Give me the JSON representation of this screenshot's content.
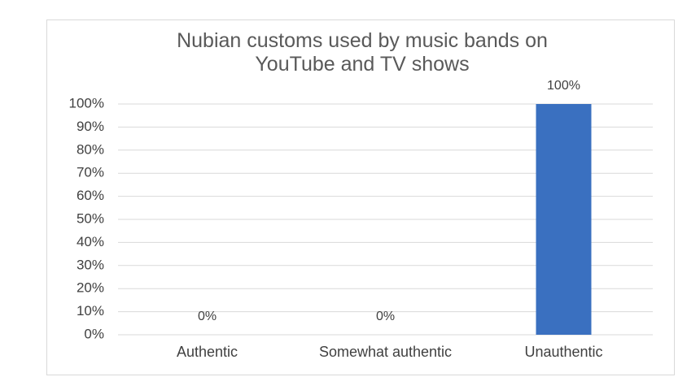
{
  "chart_data": {
    "type": "bar",
    "title": "Nubian customs used by music bands on YouTube and TV shows",
    "categories": [
      "Authentic",
      "Somewhat authentic",
      "Unauthentic"
    ],
    "values": [
      0,
      0,
      100
    ],
    "value_labels": [
      "0%",
      "0%",
      "100%"
    ],
    "color": "#3a70c0",
    "ylim": [
      0,
      100
    ],
    "yticks": [
      {
        "value": 0,
        "label": "0%"
      },
      {
        "value": 10,
        "label": "10%"
      },
      {
        "value": 20,
        "label": "20%"
      },
      {
        "value": 30,
        "label": "30%"
      },
      {
        "value": 40,
        "label": "40%"
      },
      {
        "value": 50,
        "label": "50%"
      },
      {
        "value": 60,
        "label": "60%"
      },
      {
        "value": 70,
        "label": "70%"
      },
      {
        "value": 80,
        "label": "80%"
      },
      {
        "value": 90,
        "label": "90%"
      },
      {
        "value": 100,
        "label": "100%"
      }
    ],
    "grid": true
  }
}
